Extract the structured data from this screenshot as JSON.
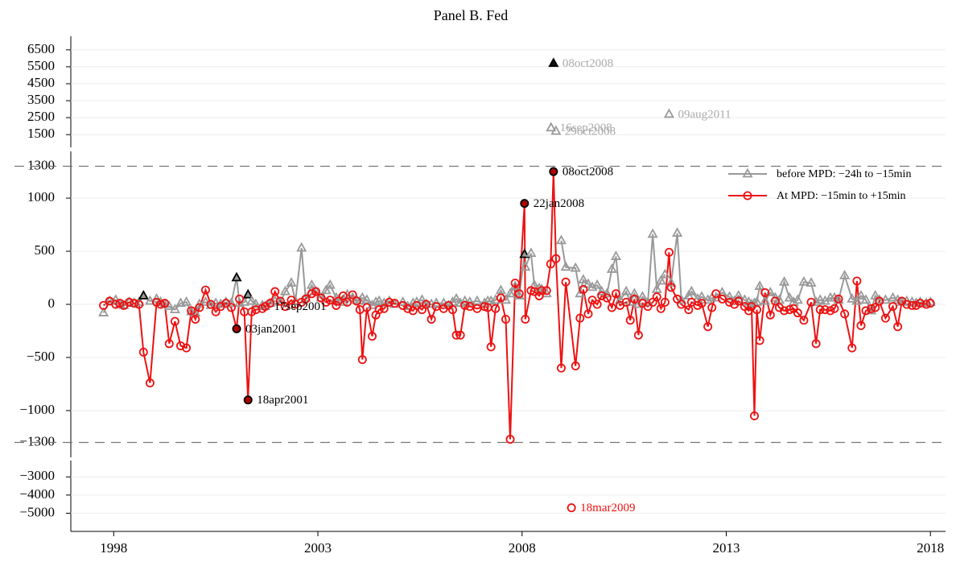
{
  "chart_data": {
    "type": "line",
    "title": "Panel B. Fed",
    "xlim": [
      1996.95,
      2018.37
    ],
    "xticks": [
      1998,
      2003,
      2008,
      2013,
      2018
    ],
    "y_segments": [
      {
        "ylim": [
          750,
          7300
        ],
        "yticks": [
          1500,
          2500,
          3500,
          4500,
          5500,
          6500
        ]
      },
      {
        "ylim": [
          -1440,
          1440
        ],
        "yticks": [
          {
            "value": -1300,
            "label": "−1300"
          },
          {
            "value": -1000,
            "label": "−1000"
          },
          {
            "value": -500,
            "label": "−500"
          },
          0,
          500,
          1000,
          1300
        ]
      },
      {
        "ylim": [
          -6000,
          -2100
        ],
        "yticks": [
          {
            "value": -5000,
            "label": "−5000"
          },
          {
            "value": -4000,
            "label": "−4000"
          },
          {
            "value": -3000,
            "label": "−3000"
          }
        ]
      }
    ],
    "hlines": [
      1300,
      -1300
    ],
    "grid": true,
    "legend": "top-right",
    "x": [
      1997.75,
      1997.9,
      1998.05,
      1998.15,
      1998.25,
      1998.38,
      1998.5,
      1998.62,
      1998.73,
      1998.89,
      1999.05,
      1999.15,
      1999.25,
      1999.36,
      1999.5,
      1999.64,
      1999.78,
      1999.9,
      2000.0,
      2000.1,
      2000.25,
      2000.38,
      2000.5,
      2000.62,
      2000.75,
      2000.88,
      2001.01,
      2001.08,
      2001.2,
      2001.29,
      2001.38,
      2001.48,
      2001.64,
      2001.71,
      2001.83,
      2001.95,
      2002.08,
      2002.2,
      2002.35,
      2002.45,
      2002.6,
      2002.7,
      2002.85,
      2002.95,
      2003.08,
      2003.2,
      2003.3,
      2003.45,
      2003.5,
      2003.62,
      2003.72,
      2003.85,
      2003.95,
      2004.03,
      2004.09,
      2004.2,
      2004.33,
      2004.42,
      2004.5,
      2004.62,
      2004.75,
      2004.88,
      2005.08,
      2005.2,
      2005.33,
      2005.42,
      2005.55,
      2005.65,
      2005.78,
      2005.9,
      2006.08,
      2006.2,
      2006.3,
      2006.39,
      2006.49,
      2006.6,
      2006.72,
      2006.9,
      2007.08,
      2007.16,
      2007.24,
      2007.35,
      2007.48,
      2007.6,
      2007.71,
      2007.83,
      2007.93,
      2008.06,
      2008.08,
      2008.22,
      2008.3,
      2008.42,
      2008.48,
      2008.6,
      2008.7,
      2008.77,
      2008.83,
      2008.96,
      2009.07,
      2009.31,
      2009.42,
      2009.5,
      2009.62,
      2009.72,
      2009.84,
      2009.95,
      2010.08,
      2010.2,
      2010.3,
      2010.4,
      2010.55,
      2010.65,
      2010.75,
      2010.85,
      2010.95,
      2011.08,
      2011.2,
      2011.3,
      2011.4,
      2011.5,
      2011.6,
      2011.65,
      2011.8,
      2011.9,
      2012.08,
      2012.15,
      2012.3,
      2012.4,
      2012.55,
      2012.65,
      2012.75,
      2012.9,
      2013.08,
      2013.2,
      2013.3,
      2013.45,
      2013.55,
      2013.62,
      2013.69,
      2013.75,
      2013.82,
      2013.95,
      2014.08,
      2014.2,
      2014.3,
      2014.42,
      2014.55,
      2014.65,
      2014.75,
      2014.9,
      2015.08,
      2015.2,
      2015.3,
      2015.42,
      2015.55,
      2015.65,
      2015.75,
      2015.9,
      2016.08,
      2016.2,
      2016.3,
      2016.42,
      2016.55,
      2016.65,
      2016.75,
      2016.9,
      2017.08,
      2017.2,
      2017.3,
      2017.42,
      2017.55,
      2017.65,
      2017.75,
      2017.9,
      2018.0
    ],
    "series": [
      {
        "name": "before MPD: −24h to −15min",
        "color": "#999999",
        "marker": "triangle",
        "highlight_indices": [
          8,
          26,
          29,
          87
        ],
        "values": [
          -80,
          30,
          40,
          0,
          -10,
          20,
          10,
          20,
          80,
          30,
          50,
          20,
          0,
          -20,
          -50,
          10,
          20,
          -70,
          -80,
          0,
          20,
          -10,
          10,
          0,
          20,
          10,
          250,
          10,
          20,
          90,
          30,
          0,
          -10,
          -20,
          10,
          30,
          20,
          120,
          200,
          30,
          530,
          60,
          180,
          120,
          60,
          130,
          180,
          60,
          40,
          20,
          90,
          60,
          40,
          30,
          60,
          40,
          -10,
          20,
          30,
          10,
          30,
          0,
          20,
          -20,
          10,
          20,
          40,
          0,
          0,
          10,
          10,
          -10,
          20,
          50,
          10,
          30,
          20,
          30,
          10,
          30,
          30,
          40,
          130,
          40,
          100,
          170,
          80,
          470,
          350,
          480,
          180,
          150,
          140,
          100,
          null,
          null,
          null,
          600,
          350,
          340,
          100,
          230,
          190,
          160,
          180,
          120,
          100,
          330,
          450,
          40,
          120,
          20,
          100,
          0,
          70,
          20,
          660,
          140,
          220,
          280,
          null,
          200,
          670,
          40,
          80,
          120,
          50,
          70,
          40,
          60,
          60,
          110,
          70,
          30,
          80,
          40,
          20,
          0,
          10,
          20,
          170,
          30,
          110,
          60,
          40,
          210,
          60,
          20,
          40,
          210,
          200,
          20,
          40,
          30,
          60,
          60,
          40,
          270,
          50,
          30,
          80,
          40,
          -60,
          80,
          40,
          40,
          60,
          40,
          20,
          30,
          20,
          10,
          20,
          10,
          20
        ]
      },
      {
        "name": "At MPD: −15min to +15min",
        "color": "#ee1111",
        "marker": "circle",
        "highlight_indices": [
          26,
          29,
          87,
          95
        ],
        "values": [
          -10,
          30,
          0,
          10,
          -10,
          20,
          10,
          0,
          -450,
          -740,
          20,
          0,
          10,
          -370,
          -160,
          -390,
          -410,
          -60,
          -140,
          -30,
          135,
          0,
          -70,
          -20,
          10,
          -30,
          -230,
          50,
          -70,
          -900,
          -70,
          -50,
          -40,
          -20,
          10,
          120,
          30,
          -20,
          40,
          0,
          20,
          50,
          100,
          120,
          60,
          20,
          40,
          -10,
          30,
          80,
          20,
          90,
          30,
          -50,
          -520,
          -30,
          -300,
          -100,
          -50,
          -40,
          20,
          10,
          -10,
          -40,
          -60,
          -10,
          -50,
          0,
          -140,
          -20,
          -40,
          -10,
          -50,
          -290,
          -290,
          -10,
          -20,
          -40,
          -20,
          -30,
          -400,
          -40,
          60,
          -140,
          -1270,
          200,
          100,
          950,
          -140,
          130,
          120,
          80,
          130,
          130,
          380,
          1250,
          430,
          -600,
          210,
          -580,
          -130,
          140,
          -90,
          40,
          0,
          80,
          60,
          -30,
          100,
          -10,
          20,
          -150,
          50,
          -290,
          10,
          -20,
          20,
          70,
          -40,
          20,
          490,
          160,
          50,
          0,
          -50,
          20,
          -10,
          10,
          -210,
          -30,
          100,
          50,
          20,
          0,
          30,
          -20,
          -60,
          -20,
          -1050,
          -50,
          -340,
          110,
          -100,
          30,
          -30,
          -60,
          -50,
          -40,
          -80,
          -150,
          20,
          -370,
          -50,
          -50,
          -60,
          -40,
          50,
          -90,
          -410,
          220,
          -200,
          -60,
          -40,
          -30,
          30,
          -130,
          -20,
          -210,
          30,
          0,
          -10,
          -10,
          10,
          0,
          10
        ]
      }
    ],
    "annotations": [
      {
        "label": "08oct2008",
        "series": 1,
        "index": 95,
        "label_color": "#000000"
      },
      {
        "label": "22jan2008",
        "series": 1,
        "index": 87,
        "label_color": "#000000"
      },
      {
        "label": "03jan2001",
        "series": 1,
        "index": 26,
        "label_color": "#000000"
      },
      {
        "label": "18apr2001",
        "series": 1,
        "index": 29,
        "label_color": "#000000"
      },
      {
        "label": "17sep2001",
        "series": 0,
        "index": 33,
        "label_color": "#000000"
      },
      {
        "label": "08oct2008",
        "series": 0,
        "x": 2008.77,
        "value": 5700,
        "filled": true,
        "label_color": "#aaaaaa"
      },
      {
        "label": "16sep2008",
        "series": 0,
        "x": 2008.71,
        "value": 1900,
        "label_color": "#aaaaaa"
      },
      {
        "label": "29oct2008",
        "series": 0,
        "x": 2008.83,
        "value": 1700,
        "label_color": "#aaaaaa"
      },
      {
        "label": "09aug2011",
        "series": 0,
        "x": 2011.6,
        "value": 2700,
        "label_color": "#aaaaaa"
      },
      {
        "label": "18mar2009",
        "series": 1,
        "x": 2009.21,
        "value": -4700,
        "label_color": "#ee1111"
      }
    ]
  }
}
